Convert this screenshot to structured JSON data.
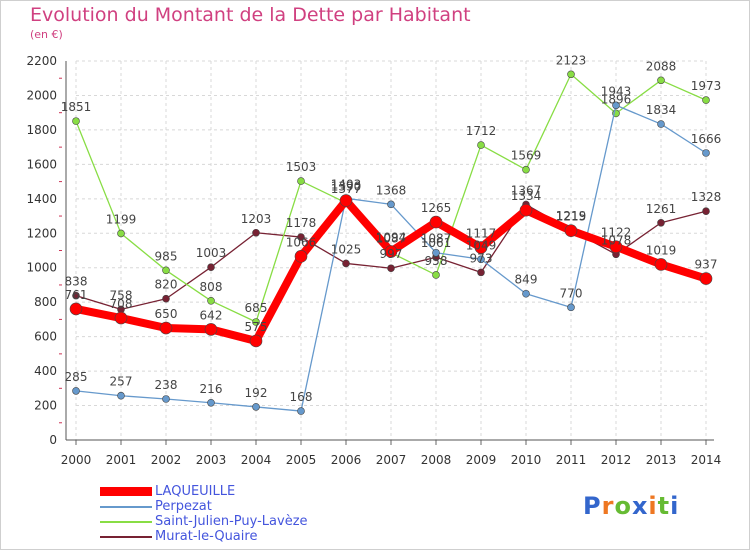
{
  "chart_data": {
    "type": "line",
    "title": "Evolution du Montant de la Dette par Habitant",
    "subtitle": "(en €)",
    "x": [
      "2000",
      "2001",
      "2002",
      "2003",
      "2004",
      "2005",
      "2006",
      "2007",
      "2008",
      "2009",
      "2010",
      "2011",
      "2012",
      "2013",
      "2014"
    ],
    "ylim": [
      0,
      2200
    ],
    "yticks": [
      0,
      200,
      400,
      600,
      800,
      1000,
      1200,
      1400,
      1600,
      1800,
      2000,
      2200
    ],
    "grid": true,
    "legend_position": "bottom-left",
    "series": [
      {
        "name": "LAQUEUILLE",
        "color": "#ff0000",
        "values": [
          761,
          708,
          650,
          642,
          575,
          1066,
          1390,
          1094,
          1265,
          1117,
          1334,
          1215,
          1122,
          1019,
          937
        ]
      },
      {
        "name": "Perpezat",
        "color": "#6699cc",
        "values": [
          285,
          257,
          238,
          216,
          192,
          168,
          1403,
          1368,
          1087,
          1049,
          849,
          770,
          1943,
          1834,
          1666
        ]
      },
      {
        "name": "Saint-Julien-Puy-Lavèze",
        "color": "#88dd44",
        "values": [
          1851,
          1199,
          985,
          808,
          685,
          1503,
          1377,
          1087,
          958,
          1712,
          1569,
          2123,
          1896,
          2088,
          1973
        ]
      },
      {
        "name": "Murat-le-Quaire",
        "color": "#772233",
        "values": [
          838,
          758,
          820,
          1003,
          1203,
          1178,
          1025,
          997,
          1061,
          973,
          1367,
          1219,
          1078,
          1261,
          1328
        ]
      }
    ]
  },
  "logo": {
    "letters": [
      "P",
      "r",
      "o",
      "x",
      "i",
      "t",
      "i"
    ],
    "colors": [
      "#3366cc",
      "#ee7722",
      "#66bb33",
      "#3366cc",
      "#ee7722",
      "#66bb33",
      "#3366cc"
    ]
  }
}
